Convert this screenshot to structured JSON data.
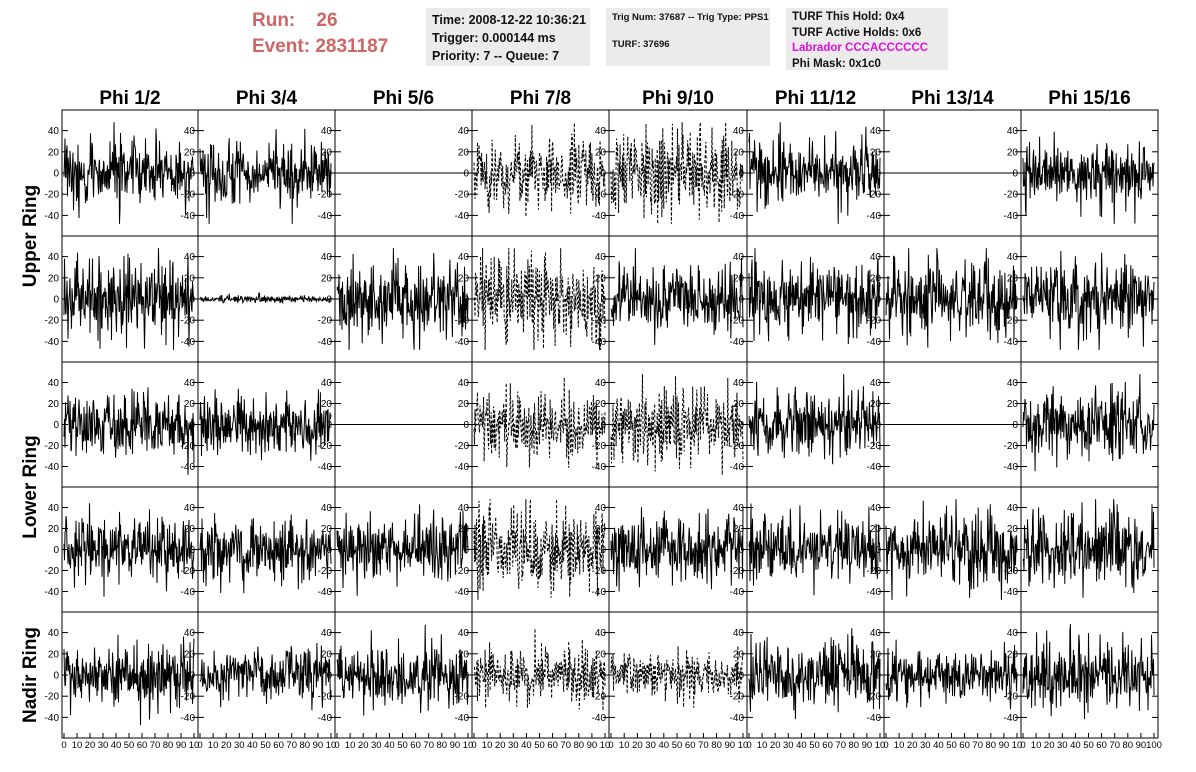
{
  "header": {
    "run_label": "Run:",
    "run_value": "26",
    "event_label": "Event:",
    "event_value": "2831187"
  },
  "info_time": {
    "time": "Time: 2008-12-22 10:36:21",
    "trigger": "Trigger: 0.000144 ms",
    "priority": "Priority: 7 -- Queue: 7"
  },
  "info_trig": {
    "trig": "Trig Num: 37687 -- Trig Type: PPS1",
    "turf": "TURF: 37696"
  },
  "info_turf": {
    "this_hold": "TURF This Hold: 0x4",
    "active_holds": "TURF Active Holds: 0x6",
    "labrador": "Labrador CCCACCCCCC",
    "phi_mask": "Phi Mask: 0x1c0"
  },
  "columns": [
    "Phi 1/2",
    "Phi 3/4",
    "Phi 5/6",
    "Phi 7/8",
    "Phi 9/10",
    "Phi 11/12",
    "Phi 13/14",
    "Phi 15/16"
  ],
  "ring_labels": [
    {
      "label": "Upper Ring",
      "rows": [
        0,
        1
      ]
    },
    {
      "label": "Lower Ring",
      "rows": [
        2,
        3
      ]
    },
    {
      "label": "Nadir Ring",
      "rows": [
        4
      ]
    }
  ],
  "colors": {
    "trace": "#000000",
    "header_red": "#d06565",
    "magenta": "#e010e0",
    "info_bg": "#ebebeb"
  },
  "chart_data": {
    "type": "line",
    "xlim": [
      0,
      100
    ],
    "ylim": [
      -50,
      50
    ],
    "yticks": [
      -40,
      -20,
      0,
      20,
      40
    ],
    "xticks": [
      0,
      10,
      20,
      30,
      40,
      50,
      60,
      70,
      80,
      90,
      100
    ],
    "xtick_labels_last_column": [
      "0",
      "10",
      "20",
      "30",
      "40",
      "50",
      "60",
      "70",
      "80",
      "90",
      "100"
    ],
    "xtick_labels_other_columns": [
      "0",
      "10",
      "20",
      "30",
      "40",
      "50",
      "60",
      "70",
      "80",
      "90",
      "10"
    ],
    "rows": [
      {
        "name": "row1",
        "panels": [
          {
            "mode": "noise",
            "amplitude": 28,
            "style": "solid",
            "seed": 11
          },
          {
            "mode": "noise",
            "amplitude": 26,
            "style": "solid",
            "seed": 12
          },
          {
            "mode": "flat",
            "amplitude": 0,
            "style": "solid",
            "seed": 13
          },
          {
            "mode": "noise",
            "amplitude": 30,
            "style": "dashed",
            "seed": 14
          },
          {
            "mode": "noise",
            "amplitude": 36,
            "style": "dashed",
            "seed": 15
          },
          {
            "mode": "noise",
            "amplitude": 28,
            "style": "solid",
            "seed": 16
          },
          {
            "mode": "flat",
            "amplitude": 0,
            "style": "solid",
            "seed": 17
          },
          {
            "mode": "noise",
            "amplitude": 30,
            "style": "solid",
            "seed": 18
          }
        ]
      },
      {
        "name": "row2",
        "panels": [
          {
            "mode": "noise",
            "amplitude": 38,
            "style": "solid",
            "seed": 21
          },
          {
            "mode": "noise",
            "amplitude": 3,
            "style": "solid",
            "seed": 22
          },
          {
            "mode": "noise",
            "amplitude": 34,
            "style": "solid",
            "seed": 23
          },
          {
            "mode": "noise",
            "amplitude": 40,
            "style": "dashed",
            "seed": 24
          },
          {
            "mode": "noise",
            "amplitude": 34,
            "style": "solid",
            "seed": 25
          },
          {
            "mode": "noise",
            "amplitude": 32,
            "style": "solid",
            "seed": 26
          },
          {
            "mode": "noise",
            "amplitude": 32,
            "style": "solid",
            "seed": 27
          },
          {
            "mode": "noise",
            "amplitude": 34,
            "style": "solid",
            "seed": 28
          }
        ]
      },
      {
        "name": "row3",
        "panels": [
          {
            "mode": "noise",
            "amplitude": 28,
            "style": "solid",
            "seed": 31
          },
          {
            "mode": "noise",
            "amplitude": 26,
            "style": "solid",
            "seed": 32
          },
          {
            "mode": "flat",
            "amplitude": 0,
            "style": "solid",
            "seed": 33
          },
          {
            "mode": "noise",
            "amplitude": 28,
            "style": "dashed",
            "seed": 34
          },
          {
            "mode": "noise",
            "amplitude": 34,
            "style": "dashed",
            "seed": 35
          },
          {
            "mode": "noise",
            "amplitude": 30,
            "style": "solid",
            "seed": 36
          },
          {
            "mode": "flat",
            "amplitude": 0,
            "style": "solid",
            "seed": 37
          },
          {
            "mode": "noise",
            "amplitude": 30,
            "style": "solid",
            "seed": 38
          }
        ]
      },
      {
        "name": "row4",
        "panels": [
          {
            "mode": "noise",
            "amplitude": 30,
            "style": "solid",
            "seed": 41
          },
          {
            "mode": "noise",
            "amplitude": 26,
            "style": "solid",
            "seed": 42
          },
          {
            "mode": "noise",
            "amplitude": 28,
            "style": "solid",
            "seed": 43
          },
          {
            "mode": "noise",
            "amplitude": 38,
            "style": "dashed",
            "seed": 44
          },
          {
            "mode": "noise",
            "amplitude": 30,
            "style": "solid",
            "seed": 45
          },
          {
            "mode": "noise",
            "amplitude": 30,
            "style": "solid",
            "seed": 46
          },
          {
            "mode": "noise",
            "amplitude": 30,
            "style": "solid",
            "seed": 47
          },
          {
            "mode": "noise",
            "amplitude": 36,
            "style": "solid",
            "seed": 48
          }
        ]
      },
      {
        "name": "row5",
        "panels": [
          {
            "mode": "noise",
            "amplitude": 28,
            "style": "solid",
            "seed": 51
          },
          {
            "mode": "noise",
            "amplitude": 22,
            "style": "solid",
            "seed": 52
          },
          {
            "mode": "noise",
            "amplitude": 26,
            "style": "solid",
            "seed": 53
          },
          {
            "mode": "noise",
            "amplitude": 24,
            "style": "dashed",
            "seed": 54
          },
          {
            "mode": "noise",
            "amplitude": 22,
            "style": "dashed",
            "seed": 55
          },
          {
            "mode": "noise",
            "amplitude": 28,
            "style": "solid",
            "seed": 56
          },
          {
            "mode": "noise",
            "amplitude": 24,
            "style": "solid",
            "seed": 57
          },
          {
            "mode": "noise",
            "amplitude": 32,
            "style": "solid",
            "seed": 58
          }
        ]
      }
    ]
  }
}
